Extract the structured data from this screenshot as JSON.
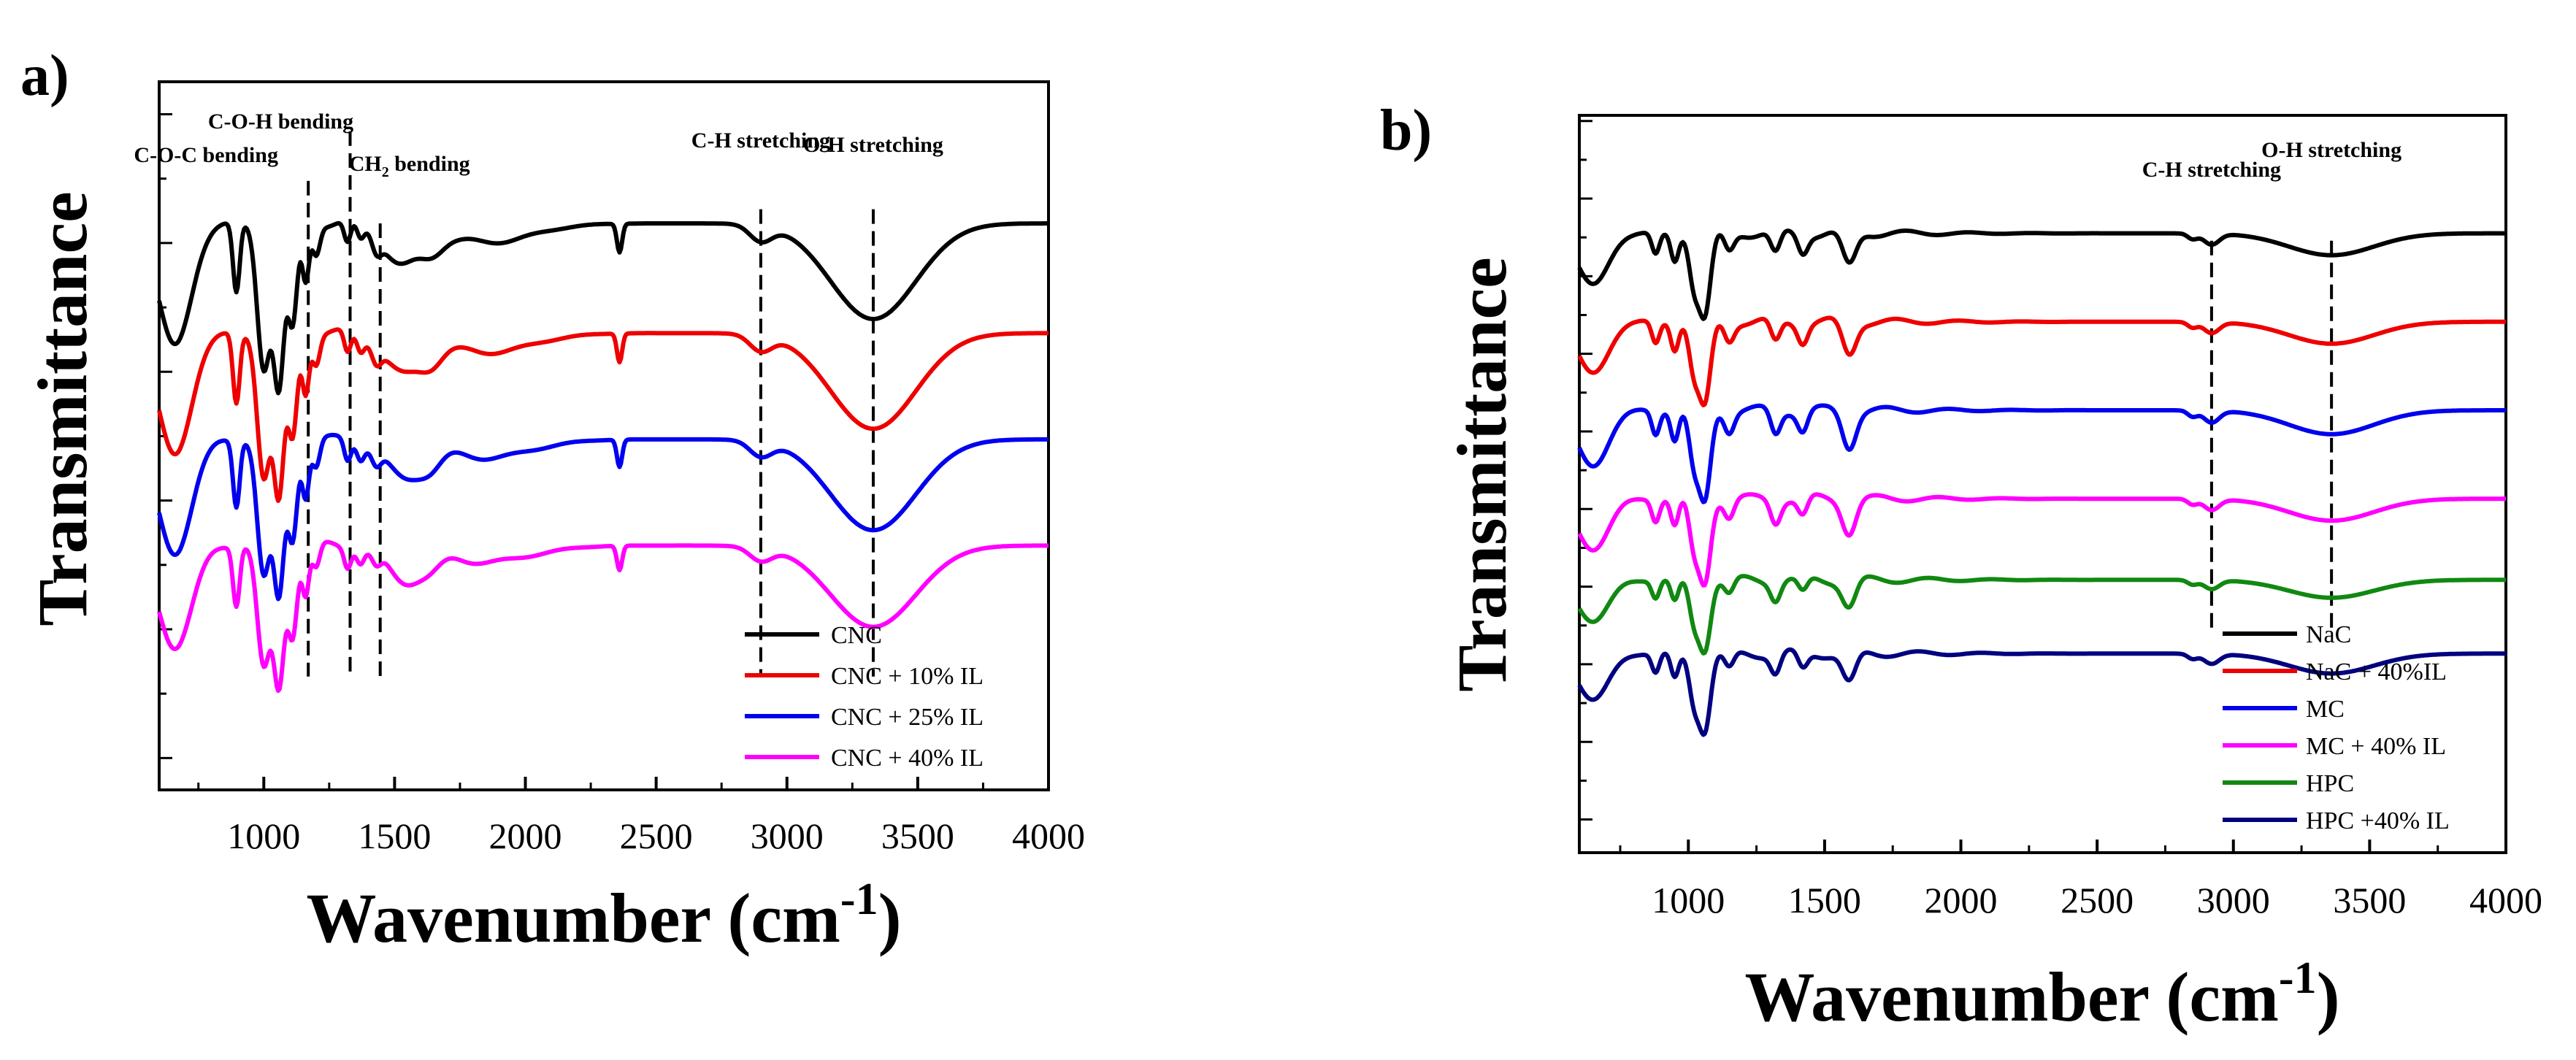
{
  "chart_data": [
    {
      "panel_label": "a)",
      "type": "line",
      "xlabel": "Wavenumber (cm",
      "xlabel_sup": "-1",
      "xlabel_close": ")",
      "ylabel": "Transmittance",
      "xlim": [
        600,
        4000
      ],
      "xticks": [
        1000,
        1500,
        2000,
        2500,
        3000,
        3500,
        4000
      ],
      "xtick_labels": [
        "1000",
        "1500",
        "2000",
        "2500",
        "3000",
        "3500",
        "4000"
      ],
      "yticks": 5,
      "annotations": [
        {
          "text": "C-O-C bending",
          "x": 1170,
          "top": 0.86
        },
        {
          "text": "C-O-H bending",
          "x": 1330,
          "top": 0.93
        },
        {
          "text": "CH",
          "sub": "2",
          "rest": " bending",
          "x": 1445,
          "top": 0.8
        },
        {
          "text": "C-H stretching",
          "x": 2900,
          "top": 0.82
        },
        {
          "text": "O-H stretching",
          "x": 3330,
          "top": 0.82
        }
      ],
      "series": [
        {
          "name": "CNC",
          "color": "#000000",
          "offset": 0.8,
          "scale": 1.0
        },
        {
          "name": "CNC + 10% IL",
          "color": "#ee0000",
          "offset": 0.645,
          "scale": 1.0
        },
        {
          "name": "CNC + 25% IL",
          "color": "#0000ee",
          "offset": 0.495,
          "scale": 0.95
        },
        {
          "name": "CNC + 40% IL",
          "color": "#ff00ff",
          "offset": 0.345,
          "scale": 0.85
        }
      ]
    },
    {
      "panel_label": "b)",
      "type": "line",
      "xlabel": "Wavenumber (cm",
      "xlabel_sup": "-1",
      "xlabel_close": ")",
      "ylabel": "Transmittance",
      "xlim": [
        600,
        4000
      ],
      "xticks": [
        1000,
        1500,
        2000,
        2500,
        3000,
        3500,
        4000
      ],
      "xtick_labels": [
        "1000",
        "1500",
        "2000",
        "2500",
        "3000",
        "3500",
        "4000"
      ],
      "yticks": 9,
      "annotations": [
        {
          "text": "C-H stretching",
          "x": 2920,
          "top": 0.83
        },
        {
          "text": "O-H stretching",
          "x": 3360,
          "top": 0.83
        }
      ],
      "series": [
        {
          "name": "NaC",
          "color": "#000000",
          "offset": 0.84,
          "scale": 0.55
        },
        {
          "name": "NaC + 40%IL",
          "color": "#ee0000",
          "offset": 0.72,
          "scale": 0.55
        },
        {
          "name": "MC",
          "color": "#0000ee",
          "offset": 0.6,
          "scale": 0.6
        },
        {
          "name": "MC + 40% IL",
          "color": "#ff00ff",
          "offset": 0.48,
          "scale": 0.55
        },
        {
          "name": "HPC",
          "color": "#118811",
          "offset": 0.37,
          "scale": 0.45
        },
        {
          "name": "HPC +40% IL",
          "color": "#000080",
          "offset": 0.27,
          "scale": 0.5
        }
      ]
    }
  ]
}
